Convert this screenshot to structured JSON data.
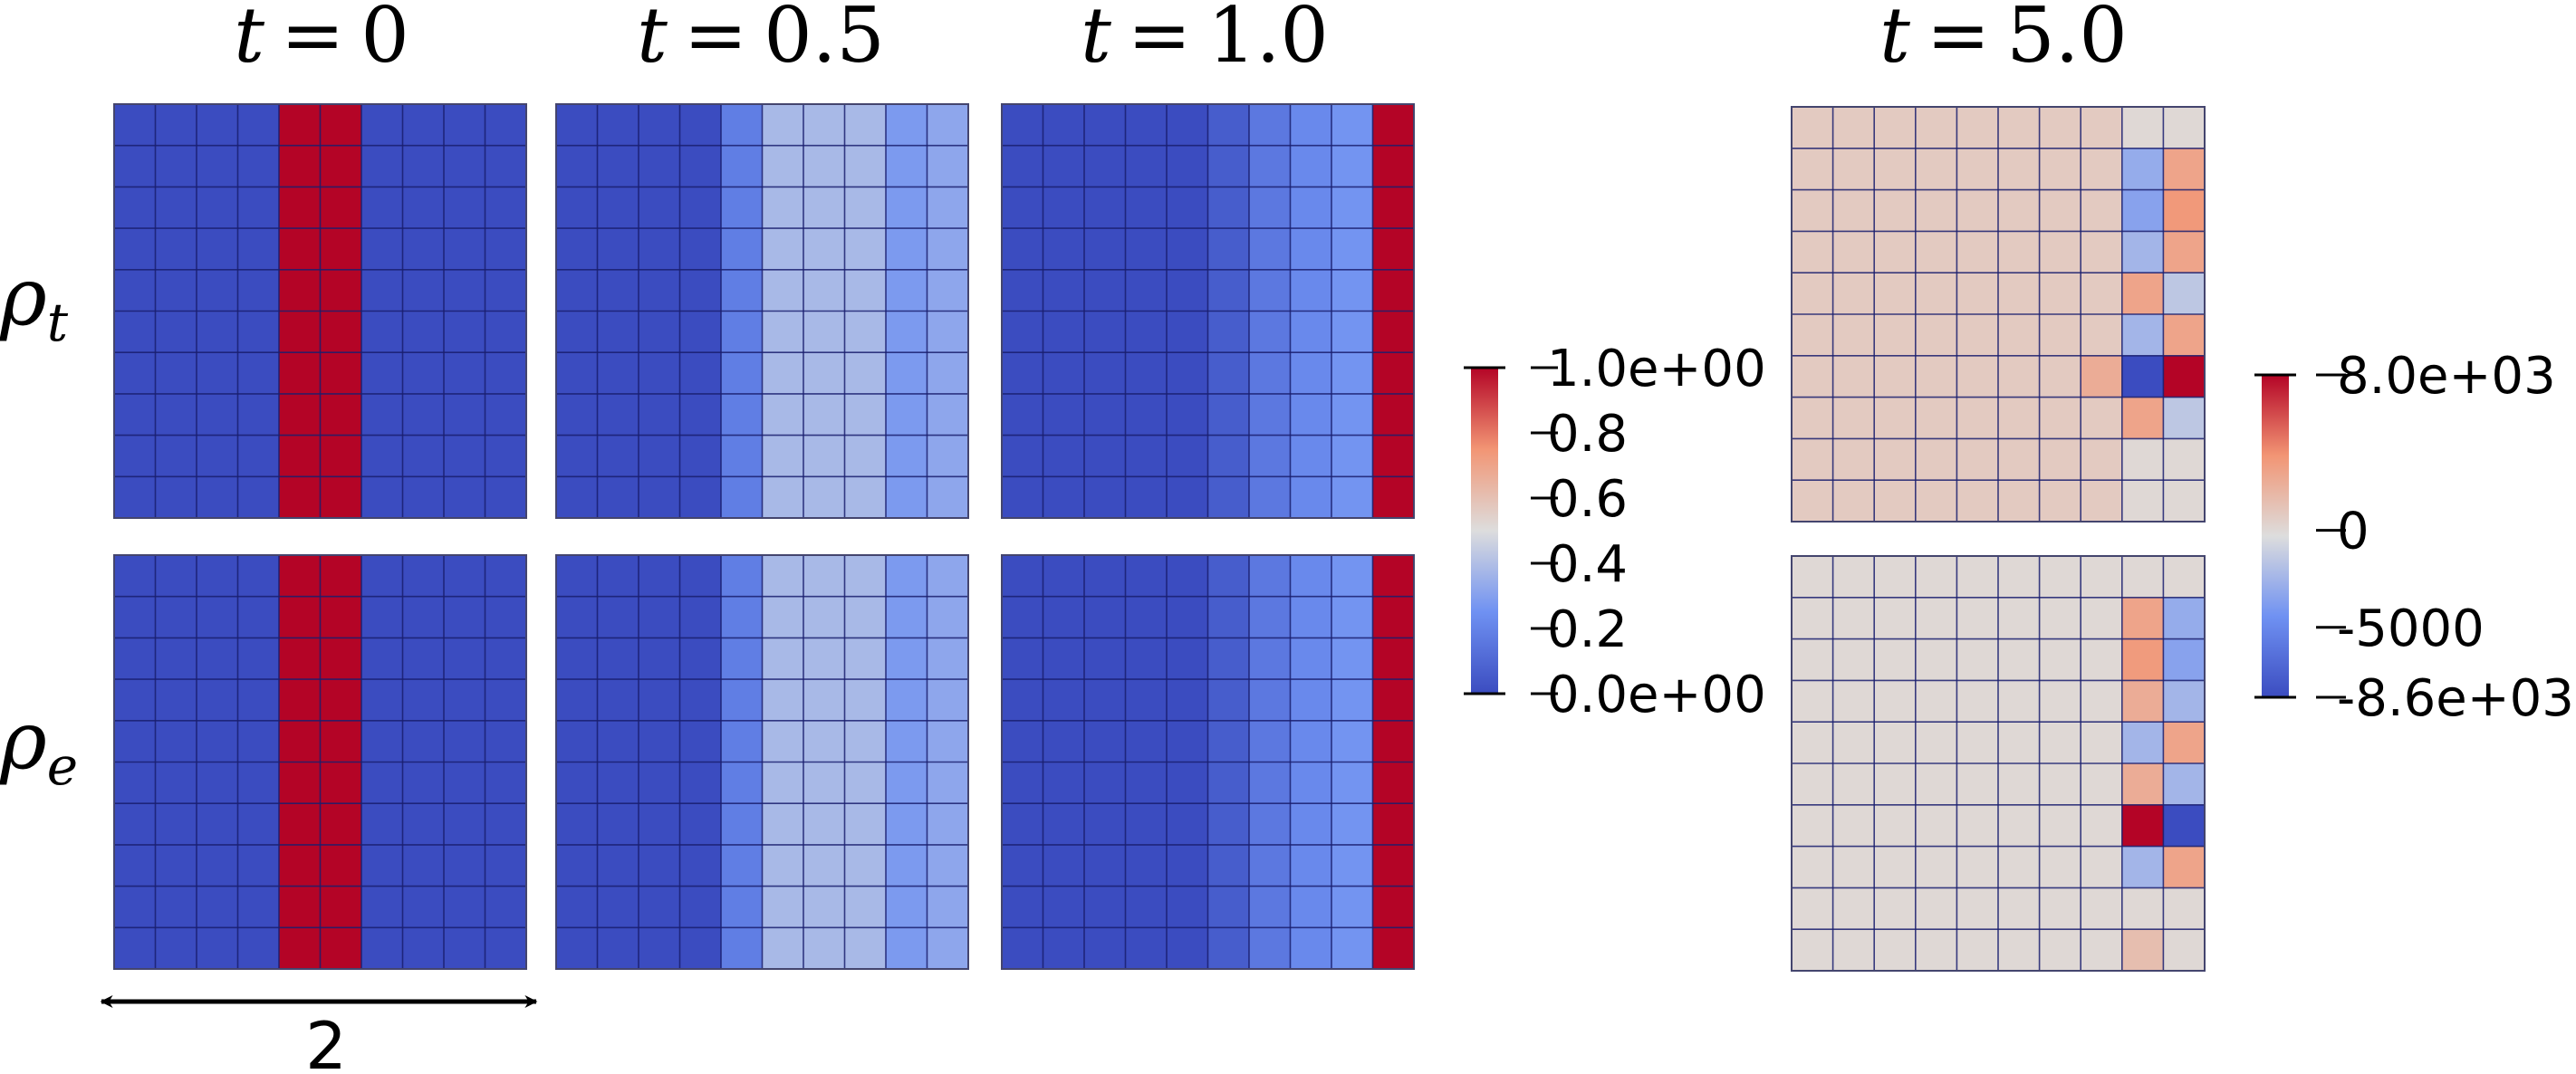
{
  "figure": {
    "time_labels": [
      {
        "var": "t",
        "op": "=",
        "val": "0"
      },
      {
        "var": "t",
        "op": "=",
        "val": "0.5"
      },
      {
        "var": "t",
        "op": "=",
        "val": "1.0"
      },
      {
        "var": "t",
        "op": "=",
        "val": "5.0"
      }
    ],
    "row_labels": [
      {
        "base": "ρ",
        "sub": "t"
      },
      {
        "base": "ρ",
        "sub": "e"
      }
    ],
    "scale_label": "2"
  },
  "colorbars": [
    {
      "ticks": [
        "1.0e+00",
        "0.8",
        "0.6",
        "0.4",
        "0.2",
        "0.0e+00"
      ],
      "tick_values": [
        1.0,
        0.8,
        0.6,
        0.4,
        0.2,
        0.0
      ],
      "min": 0.0,
      "max": 1.0
    },
    {
      "ticks": [
        "8.0e+03",
        "0",
        "-5000",
        "-8.6e+03"
      ],
      "tick_values": [
        8000,
        0,
        -5000,
        -8600
      ],
      "min": -8600,
      "max": 8000
    }
  ],
  "chart_data": {
    "type": "heatmap",
    "grid": {
      "rows": 10,
      "cols": 10
    },
    "colormap": "cool-to-warm",
    "colormap_stops": [
      "#3b4cc0",
      "#6f91f2",
      "#dddddd",
      "#f29574",
      "#b40426"
    ],
    "panels": [
      {
        "row": "rho_t",
        "t": "0",
        "scale": 0,
        "column_values": [
          0,
          0,
          0,
          0,
          1,
          1,
          0,
          0,
          0,
          0
        ]
      },
      {
        "row": "rho_t",
        "t": "0.5",
        "scale": 0,
        "column_values": [
          0,
          0,
          0,
          0,
          0.18,
          0.38,
          0.38,
          0.38,
          0.28,
          0.32
        ]
      },
      {
        "row": "rho_t",
        "t": "1.0",
        "scale": 0,
        "column_values": [
          0,
          0,
          0,
          0,
          0,
          0.06,
          0.16,
          0.22,
          0.26,
          1
        ]
      },
      {
        "row": "rho_e",
        "t": "0",
        "scale": 0,
        "column_values": [
          0,
          0,
          0,
          0,
          1,
          1,
          0,
          0,
          0,
          0
        ]
      },
      {
        "row": "rho_e",
        "t": "0.5",
        "scale": 0,
        "column_values": [
          0,
          0,
          0,
          0,
          0.18,
          0.38,
          0.38,
          0.38,
          0.28,
          0.32
        ]
      },
      {
        "row": "rho_e",
        "t": "1.0",
        "scale": 0,
        "column_values": [
          0,
          0,
          0,
          0,
          0,
          0.06,
          0.16,
          0.22,
          0.26,
          1
        ]
      },
      {
        "row": "rho_t",
        "t": "5.0",
        "scale": 1,
        "base_value": 800,
        "cells": [
          [
            0,
            8,
            0
          ],
          [
            0,
            9,
            0
          ],
          [
            1,
            8,
            -3000
          ],
          [
            1,
            9,
            3000
          ],
          [
            2,
            8,
            -3500
          ],
          [
            2,
            9,
            3600
          ],
          [
            3,
            8,
            -2500
          ],
          [
            3,
            9,
            3000
          ],
          [
            4,
            8,
            3000
          ],
          [
            4,
            9,
            -1500
          ],
          [
            5,
            8,
            -2500
          ],
          [
            5,
            9,
            3000
          ],
          [
            6,
            7,
            2500
          ],
          [
            6,
            8,
            -8600
          ],
          [
            6,
            9,
            8000
          ],
          [
            7,
            8,
            3000
          ],
          [
            7,
            9,
            -1500
          ],
          [
            8,
            8,
            0
          ],
          [
            8,
            9,
            0
          ],
          [
            9,
            8,
            0
          ],
          [
            9,
            9,
            0
          ]
        ]
      },
      {
        "row": "rho_e",
        "t": "5.0",
        "scale": 1,
        "base_value": 0,
        "cells": [
          [
            1,
            8,
            3000
          ],
          [
            1,
            9,
            -3000
          ],
          [
            2,
            8,
            3500
          ],
          [
            2,
            9,
            -3500
          ],
          [
            3,
            8,
            2500
          ],
          [
            3,
            9,
            -2500
          ],
          [
            4,
            8,
            -2500
          ],
          [
            4,
            9,
            3000
          ],
          [
            5,
            8,
            2500
          ],
          [
            5,
            9,
            -2500
          ],
          [
            6,
            8,
            8000
          ],
          [
            6,
            9,
            -8600
          ],
          [
            7,
            8,
            -2500
          ],
          [
            7,
            9,
            3000
          ],
          [
            9,
            8,
            1500
          ]
        ]
      }
    ]
  }
}
